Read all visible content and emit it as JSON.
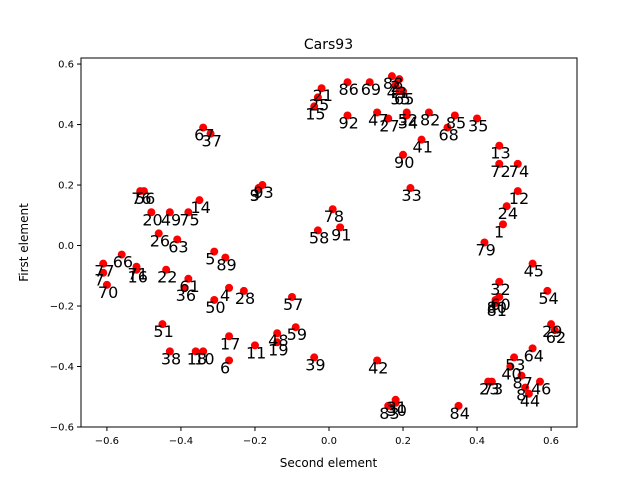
{
  "chart_data": {
    "type": "scatter",
    "title": "Cars93",
    "xlabel": "Second element",
    "ylabel": "First element",
    "xlim": [
      -0.67,
      0.67
    ],
    "ylim": [
      -0.6,
      0.62
    ],
    "xticks": [
      -0.6,
      -0.4,
      -0.2,
      0.0,
      0.2,
      0.4,
      0.6
    ],
    "xtick_labels": [
      "−0.6",
      "−0.4",
      "−0.2",
      "0.0",
      "0.2",
      "0.4",
      "0.6"
    ],
    "yticks": [
      -0.6,
      -0.4,
      -0.2,
      0.0,
      0.2,
      0.4,
      0.6
    ],
    "ytick_labels": [
      "−0.6",
      "−0.4",
      "−0.2",
      "0.0",
      "0.2",
      "0.4",
      "0.6"
    ],
    "marker_color": "#ff0000",
    "points": [
      {
        "label": "1",
        "x": 0.47,
        "y": 0.07
      },
      {
        "label": "2",
        "x": 0.19,
        "y": 0.55
      },
      {
        "label": "3",
        "x": -0.19,
        "y": 0.19
      },
      {
        "label": "4",
        "x": -0.27,
        "y": -0.14
      },
      {
        "label": "5",
        "x": -0.31,
        "y": -0.02
      },
      {
        "label": "6",
        "x": -0.27,
        "y": -0.38
      },
      {
        "label": "7",
        "x": -0.61,
        "y": -0.09
      },
      {
        "label": "8",
        "x": 0.53,
        "y": -0.47
      },
      {
        "label": "9",
        "x": -0.19,
        "y": 0.19
      },
      {
        "label": "10",
        "x": -0.34,
        "y": -0.35
      },
      {
        "label": "11",
        "x": -0.2,
        "y": -0.33
      },
      {
        "label": "12",
        "x": 0.51,
        "y": 0.18
      },
      {
        "label": "13",
        "x": 0.46,
        "y": 0.33
      },
      {
        "label": "14",
        "x": -0.35,
        "y": 0.15
      },
      {
        "label": "15",
        "x": -0.04,
        "y": 0.46
      },
      {
        "label": "16",
        "x": -0.52,
        "y": -0.08
      },
      {
        "label": "17",
        "x": -0.27,
        "y": -0.3
      },
      {
        "label": "18",
        "x": -0.36,
        "y": -0.35
      },
      {
        "label": "19",
        "x": -0.14,
        "y": -0.32
      },
      {
        "label": "20",
        "x": -0.48,
        "y": 0.11
      },
      {
        "label": "21",
        "x": -0.02,
        "y": 0.52
      },
      {
        "label": "22",
        "x": -0.44,
        "y": -0.08
      },
      {
        "label": "23",
        "x": 0.43,
        "y": -0.45
      },
      {
        "label": "24",
        "x": 0.48,
        "y": 0.13
      },
      {
        "label": "25",
        "x": -0.03,
        "y": 0.49
      },
      {
        "label": "26",
        "x": -0.46,
        "y": 0.04
      },
      {
        "label": "27",
        "x": 0.16,
        "y": 0.42
      },
      {
        "label": "28",
        "x": -0.23,
        "y": -0.15
      },
      {
        "label": "29",
        "x": 0.6,
        "y": -0.26
      },
      {
        "label": "30",
        "x": 0.18,
        "y": -0.52
      },
      {
        "label": "31",
        "x": 0.18,
        "y": -0.51
      },
      {
        "label": "32",
        "x": 0.46,
        "y": -0.12
      },
      {
        "label": "33",
        "x": 0.22,
        "y": 0.19
      },
      {
        "label": "34",
        "x": 0.21,
        "y": 0.43
      },
      {
        "label": "35",
        "x": 0.4,
        "y": 0.42
      },
      {
        "label": "36",
        "x": -0.39,
        "y": -0.14
      },
      {
        "label": "37",
        "x": -0.32,
        "y": 0.37
      },
      {
        "label": "38",
        "x": -0.43,
        "y": -0.35
      },
      {
        "label": "39",
        "x": -0.04,
        "y": -0.37
      },
      {
        "label": "40",
        "x": 0.49,
        "y": -0.4
      },
      {
        "label": "41",
        "x": 0.25,
        "y": 0.35
      },
      {
        "label": "42",
        "x": 0.13,
        "y": -0.38
      },
      {
        "label": "43",
        "x": 0.18,
        "y": 0.53
      },
      {
        "label": "44",
        "x": 0.54,
        "y": -0.49
      },
      {
        "label": "45",
        "x": 0.55,
        "y": -0.06
      },
      {
        "label": "46",
        "x": 0.57,
        "y": -0.45
      },
      {
        "label": "47",
        "x": 0.13,
        "y": 0.44
      },
      {
        "label": "48",
        "x": -0.14,
        "y": -0.29
      },
      {
        "label": "49",
        "x": -0.43,
        "y": 0.11
      },
      {
        "label": "50",
        "x": -0.31,
        "y": -0.18
      },
      {
        "label": "51",
        "x": -0.45,
        "y": -0.26
      },
      {
        "label": "52",
        "x": 0.21,
        "y": 0.44
      },
      {
        "label": "53",
        "x": 0.5,
        "y": -0.37
      },
      {
        "label": "54",
        "x": 0.59,
        "y": -0.15
      },
      {
        "label": "55",
        "x": 0.19,
        "y": 0.51
      },
      {
        "label": "56",
        "x": -0.5,
        "y": 0.18
      },
      {
        "label": "57",
        "x": -0.1,
        "y": -0.17
      },
      {
        "label": "58",
        "x": -0.03,
        "y": 0.05
      },
      {
        "label": "59",
        "x": -0.09,
        "y": -0.27
      },
      {
        "label": "60",
        "x": 0.46,
        "y": -0.17
      },
      {
        "label": "61",
        "x": -0.38,
        "y": -0.11
      },
      {
        "label": "62",
        "x": 0.61,
        "y": -0.28
      },
      {
        "label": "63",
        "x": -0.41,
        "y": 0.02
      },
      {
        "label": "64",
        "x": 0.55,
        "y": -0.34
      },
      {
        "label": "65",
        "x": 0.2,
        "y": 0.51
      },
      {
        "label": "66",
        "x": -0.56,
        "y": -0.03
      },
      {
        "label": "67",
        "x": -0.34,
        "y": 0.39
      },
      {
        "label": "68",
        "x": 0.32,
        "y": 0.39
      },
      {
        "label": "69",
        "x": 0.11,
        "y": 0.54
      },
      {
        "label": "70",
        "x": -0.6,
        "y": -0.13
      },
      {
        "label": "71",
        "x": -0.52,
        "y": -0.07
      },
      {
        "label": "72",
        "x": 0.46,
        "y": 0.27
      },
      {
        "label": "73",
        "x": 0.44,
        "y": -0.45
      },
      {
        "label": "74",
        "x": 0.51,
        "y": 0.27
      },
      {
        "label": "75",
        "x": -0.38,
        "y": 0.11
      },
      {
        "label": "76",
        "x": -0.51,
        "y": 0.18
      },
      {
        "label": "77",
        "x": -0.61,
        "y": -0.06
      },
      {
        "label": "78",
        "x": 0.01,
        "y": 0.12
      },
      {
        "label": "79",
        "x": 0.42,
        "y": 0.01
      },
      {
        "label": "80",
        "x": 0.45,
        "y": -0.18
      },
      {
        "label": "81",
        "x": 0.45,
        "y": -0.19
      },
      {
        "label": "82",
        "x": 0.27,
        "y": 0.44
      },
      {
        "label": "83",
        "x": 0.16,
        "y": -0.53
      },
      {
        "label": "84",
        "x": 0.35,
        "y": -0.53
      },
      {
        "label": "85",
        "x": 0.34,
        "y": 0.43
      },
      {
        "label": "86",
        "x": 0.05,
        "y": 0.54
      },
      {
        "label": "87",
        "x": 0.52,
        "y": -0.43
      },
      {
        "label": "88",
        "x": 0.17,
        "y": 0.56
      },
      {
        "label": "89",
        "x": -0.28,
        "y": -0.04
      },
      {
        "label": "90",
        "x": 0.2,
        "y": 0.3
      },
      {
        "label": "91",
        "x": 0.03,
        "y": 0.06
      },
      {
        "label": "92",
        "x": 0.05,
        "y": 0.43
      },
      {
        "label": "93",
        "x": -0.18,
        "y": 0.2
      }
    ]
  }
}
